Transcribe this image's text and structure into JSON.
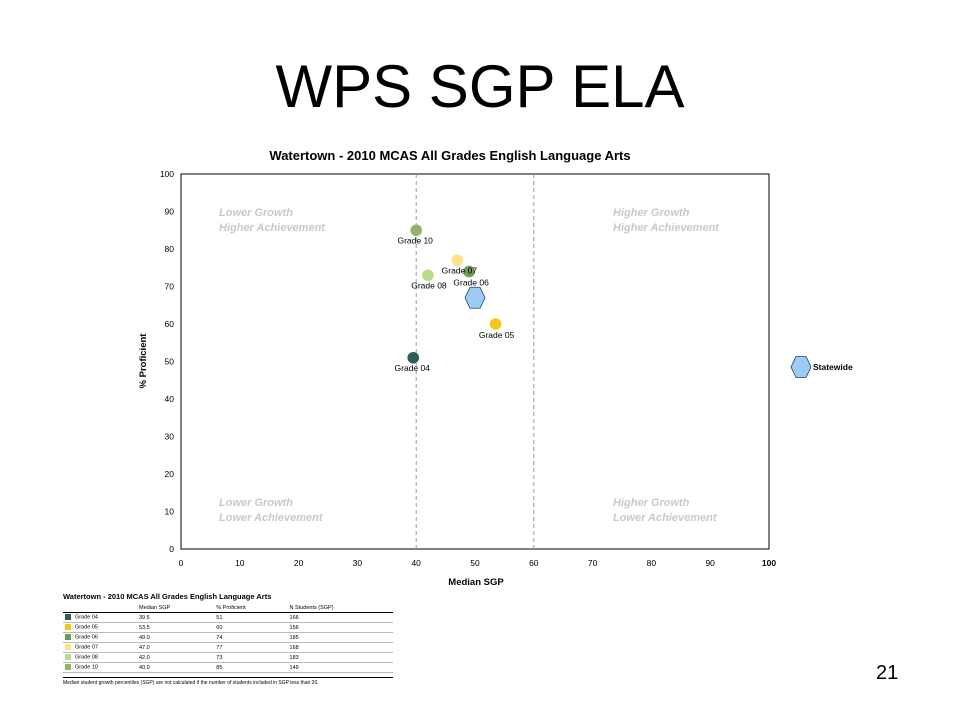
{
  "slide": {
    "title": "WPS SGP ELA",
    "page_number": "21"
  },
  "chart_data": {
    "type": "scatter",
    "title": "Watertown - 2010 MCAS All Grades English Language Arts",
    "xlabel": "Median SGP",
    "ylabel": "% Proficient",
    "xlim": [
      0,
      100
    ],
    "ylim": [
      0,
      100
    ],
    "xticks": [
      "0",
      "10",
      "20",
      "30",
      "40",
      "50",
      "60",
      "70",
      "80",
      "90",
      "100"
    ],
    "yticks": [
      "0",
      "10",
      "20",
      "30",
      "40",
      "50",
      "60",
      "70",
      "80",
      "90",
      "100"
    ],
    "reference_lines_x": [
      40,
      60
    ],
    "grid": false,
    "quadrants": [
      {
        "line1": "Lower Growth",
        "line2": "Higher Achievement",
        "position": "top-left"
      },
      {
        "line1": "Higher Growth",
        "line2": "Higher Achievement",
        "position": "top-right"
      },
      {
        "line1": "Lower Growth",
        "line2": "Lower Achievement",
        "position": "bottom-left"
      },
      {
        "line1": "Higher Growth",
        "line2": "Lower Achievement",
        "position": "bottom-right"
      }
    ],
    "points": [
      {
        "label": "Grade 10",
        "x": 40.0,
        "y": 85,
        "color": "#94b26e"
      },
      {
        "label": "Grade 07",
        "x": 47.0,
        "y": 77,
        "color": "#fde289"
      },
      {
        "label": "Grade 08",
        "x": 42.0,
        "y": 73,
        "color": "#b8dd8a"
      },
      {
        "label": "Grade 06",
        "x": 49.0,
        "y": 74,
        "color": "#6f9a53"
      },
      {
        "label": "Grade 05",
        "x": 53.5,
        "y": 60,
        "color": "#f5c518"
      },
      {
        "label": "Grade 04",
        "x": 39.5,
        "y": 51,
        "color": "#2f5d58"
      }
    ],
    "statewide": {
      "label": "Statewide",
      "x": 50,
      "y": 67,
      "color": "#9dcbf3"
    }
  },
  "table": {
    "title": "Watertown - 2010 MCAS All Grades English Language Arts",
    "headers": [
      "",
      "Median SGP",
      "% Proficient",
      "N Students (SGP)"
    ],
    "rows": [
      {
        "grade": "Grade 04",
        "sgp": "39.5",
        "prof": "51",
        "n": "166",
        "color": "#2f5d58"
      },
      {
        "grade": "Grade 05",
        "sgp": "53.5",
        "prof": "60",
        "n": "156",
        "color": "#f5c518"
      },
      {
        "grade": "Grade 06",
        "sgp": "49.0",
        "prof": "74",
        "n": "185",
        "color": "#6f9a53"
      },
      {
        "grade": "Grade 07",
        "sgp": "47.0",
        "prof": "77",
        "n": "168",
        "color": "#fde289"
      },
      {
        "grade": "Grade 08",
        "sgp": "42.0",
        "prof": "73",
        "n": "183",
        "color": "#b8dd8a"
      },
      {
        "grade": "Grade 10",
        "sgp": "40.0",
        "prof": "85",
        "n": "149",
        "color": "#94b26e"
      }
    ],
    "footnote": "Median student growth percentiles (SGP) are not calculated if the number of students included in SGP less than 20."
  }
}
